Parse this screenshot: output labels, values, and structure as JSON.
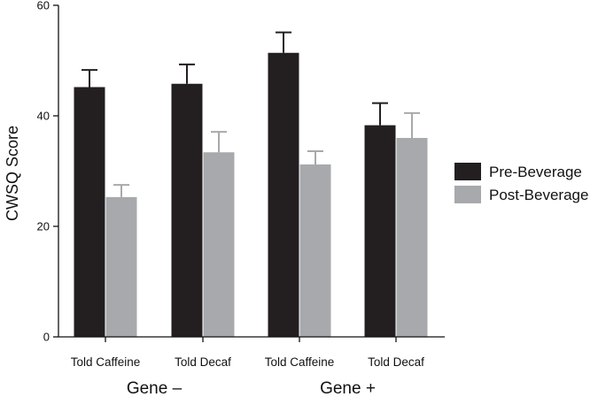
{
  "chart_data": {
    "type": "bar",
    "title": "",
    "xlabel": "",
    "ylabel": "CWSQ Score",
    "ylim": [
      0,
      60
    ],
    "yticks": [
      0,
      20,
      40,
      60
    ],
    "categories": [
      "Told Caffeine",
      "Told Decaf",
      "Told Caffeine",
      "Told Decaf"
    ],
    "groups": [
      {
        "label": "Gene –",
        "categories": [
          0,
          1
        ]
      },
      {
        "label": "Gene +",
        "categories": [
          2,
          3
        ]
      }
    ],
    "series": [
      {
        "name": "Pre-Beverage",
        "color": "#231f20",
        "values": [
          45.2,
          45.8,
          51.4,
          38.3
        ],
        "errors": [
          3.1,
          3.5,
          3.7,
          4.0
        ]
      },
      {
        "name": "Post-Beverage",
        "color": "#a7a9ac",
        "values": [
          25.3,
          33.4,
          31.2,
          36.0
        ],
        "errors": [
          2.2,
          3.7,
          2.4,
          4.5
        ]
      }
    ],
    "legend": "right"
  }
}
